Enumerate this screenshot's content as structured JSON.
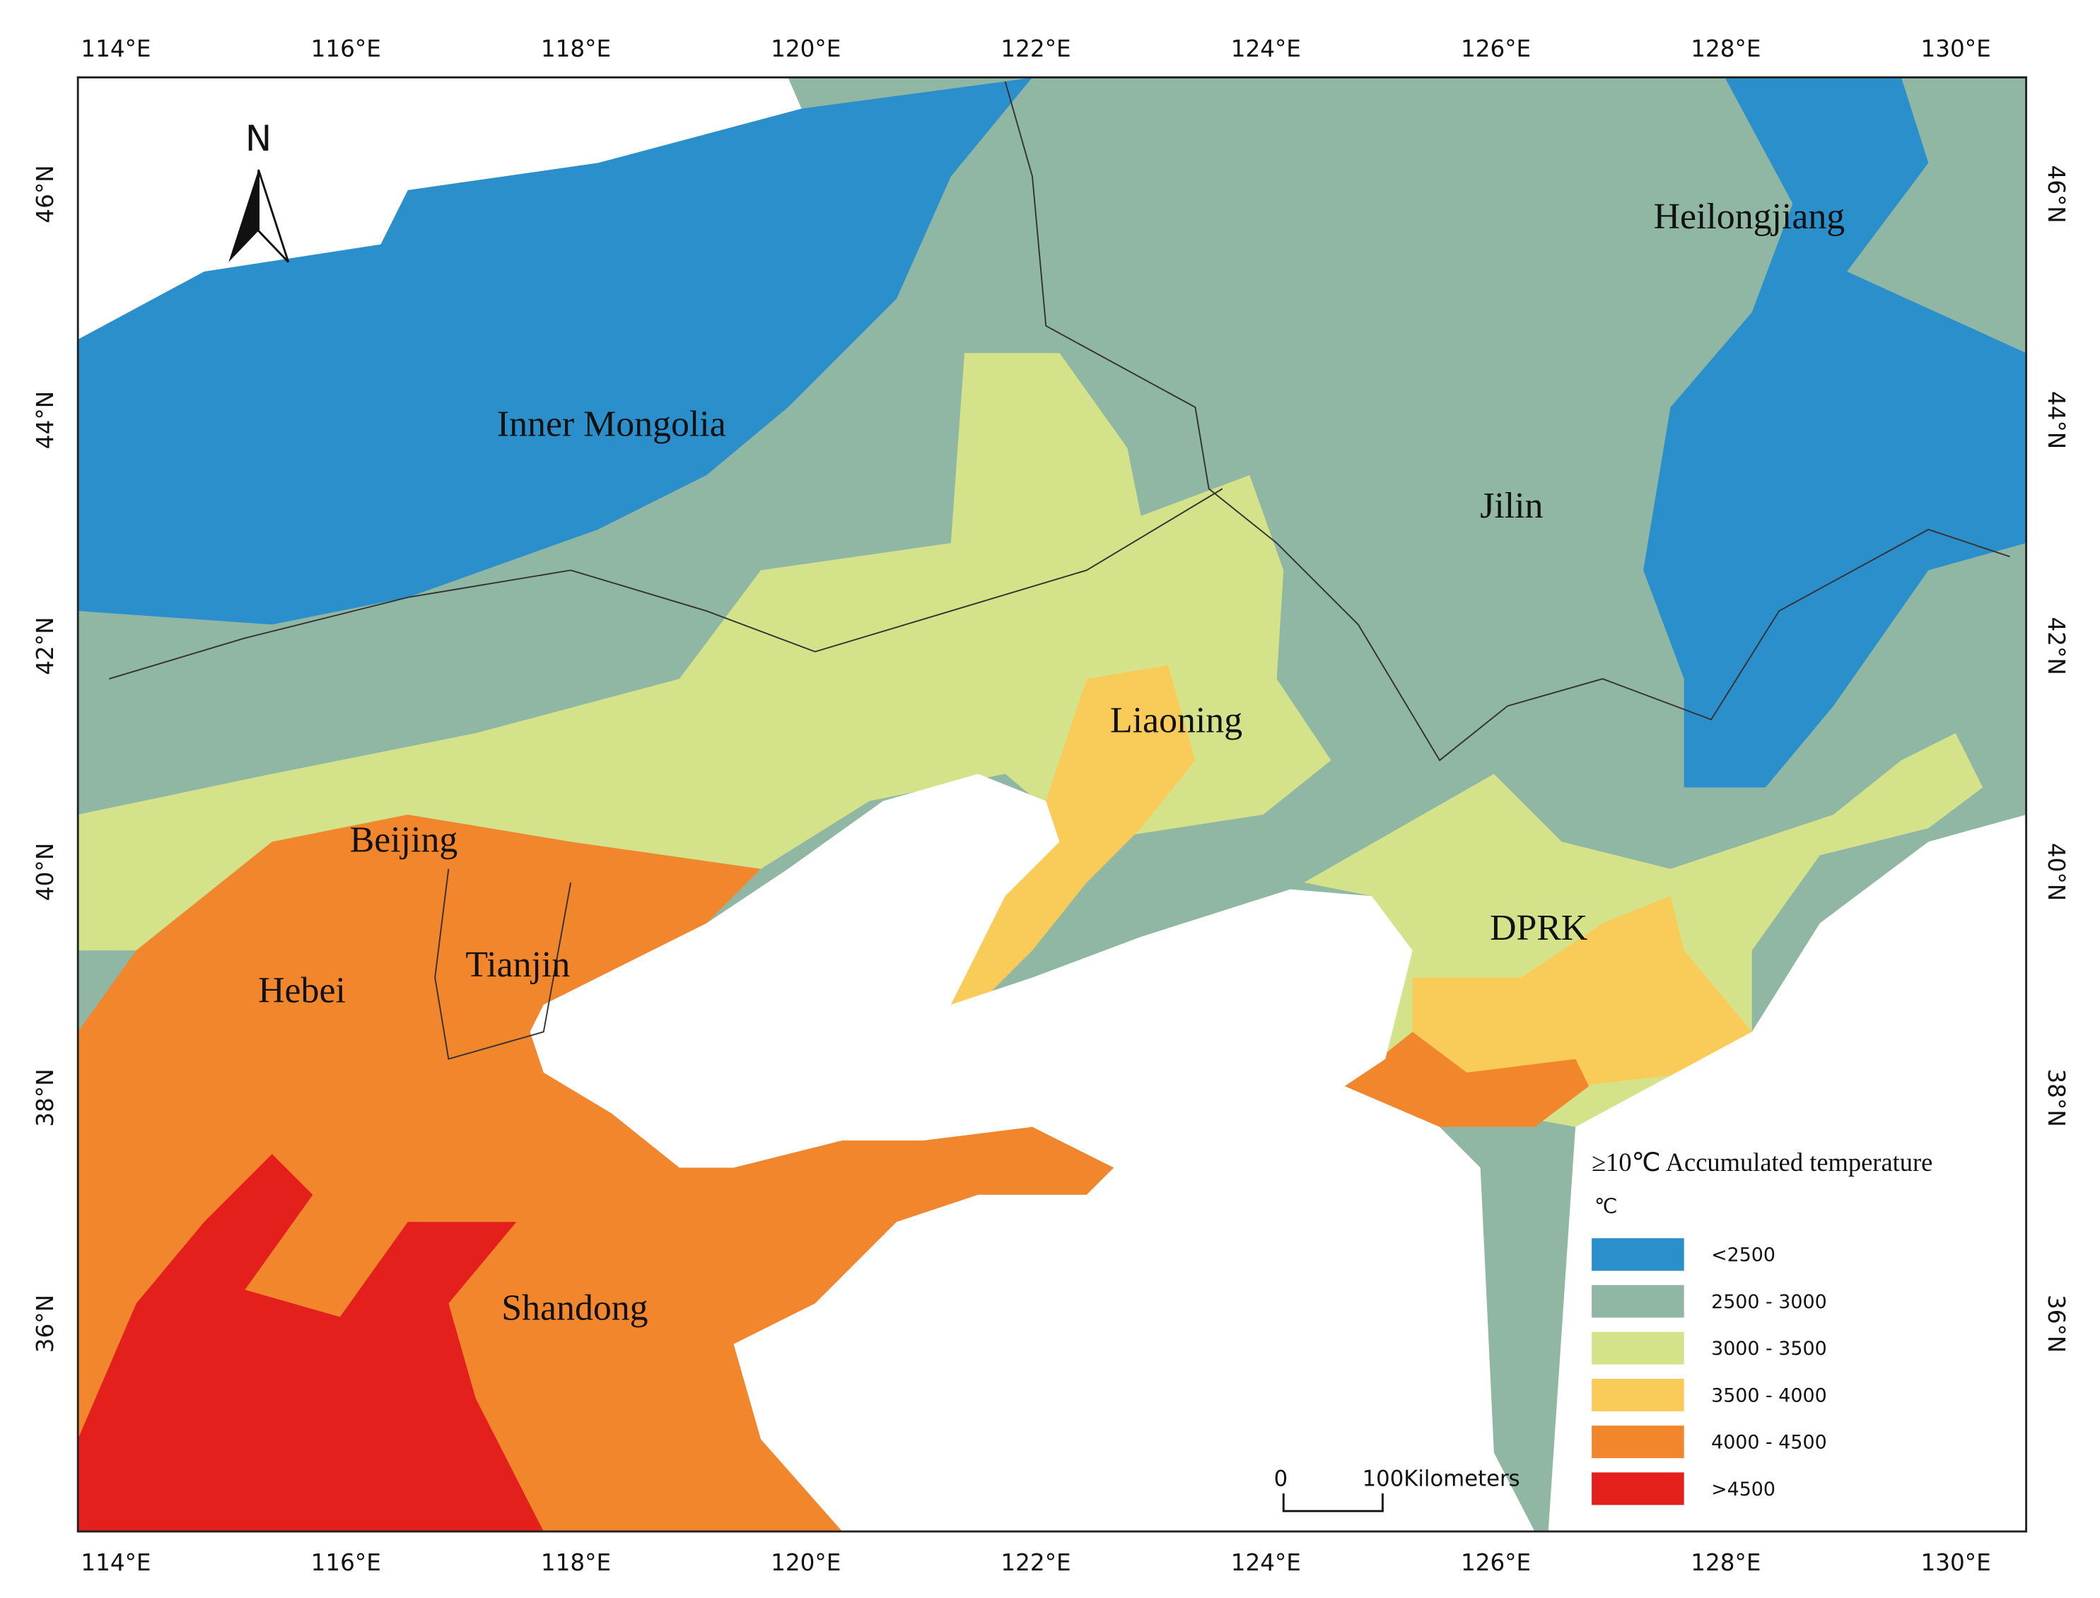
{
  "map": {
    "lon_labels": [
      "114°E",
      "116°E",
      "118°E",
      "120°E",
      "122°E",
      "124°E",
      "126°E",
      "128°E",
      "130°E"
    ],
    "lat_labels": [
      "46°N",
      "44°N",
      "42°N",
      "40°N",
      "38°N",
      "36°N"
    ],
    "north": "N",
    "places": [
      "Inner Mongolia",
      "Heilongjiang",
      "Jilin",
      "Liaoning",
      "Beijing",
      "Tianjin",
      "Hebei",
      "Shandong",
      "DPRK"
    ],
    "legend": {
      "title": "≥10℃ Accumulated temperature",
      "unit": "℃",
      "items": [
        {
          "label": "<2500",
          "color": "#2b8fcb"
        },
        {
          "label": "2500 - 3000",
          "color": "#8fb7a3"
        },
        {
          "label": "3000 - 3500",
          "color": "#d4e38a"
        },
        {
          "label": "3500 - 4000",
          "color": "#f9cc5a"
        },
        {
          "label": "4000 - 4500",
          "color": "#f2862d"
        },
        {
          "label": ">4500",
          "color": "#e3201b"
        }
      ]
    },
    "scale_bar": {
      "start": "0",
      "end": "100Kilometers"
    }
  }
}
